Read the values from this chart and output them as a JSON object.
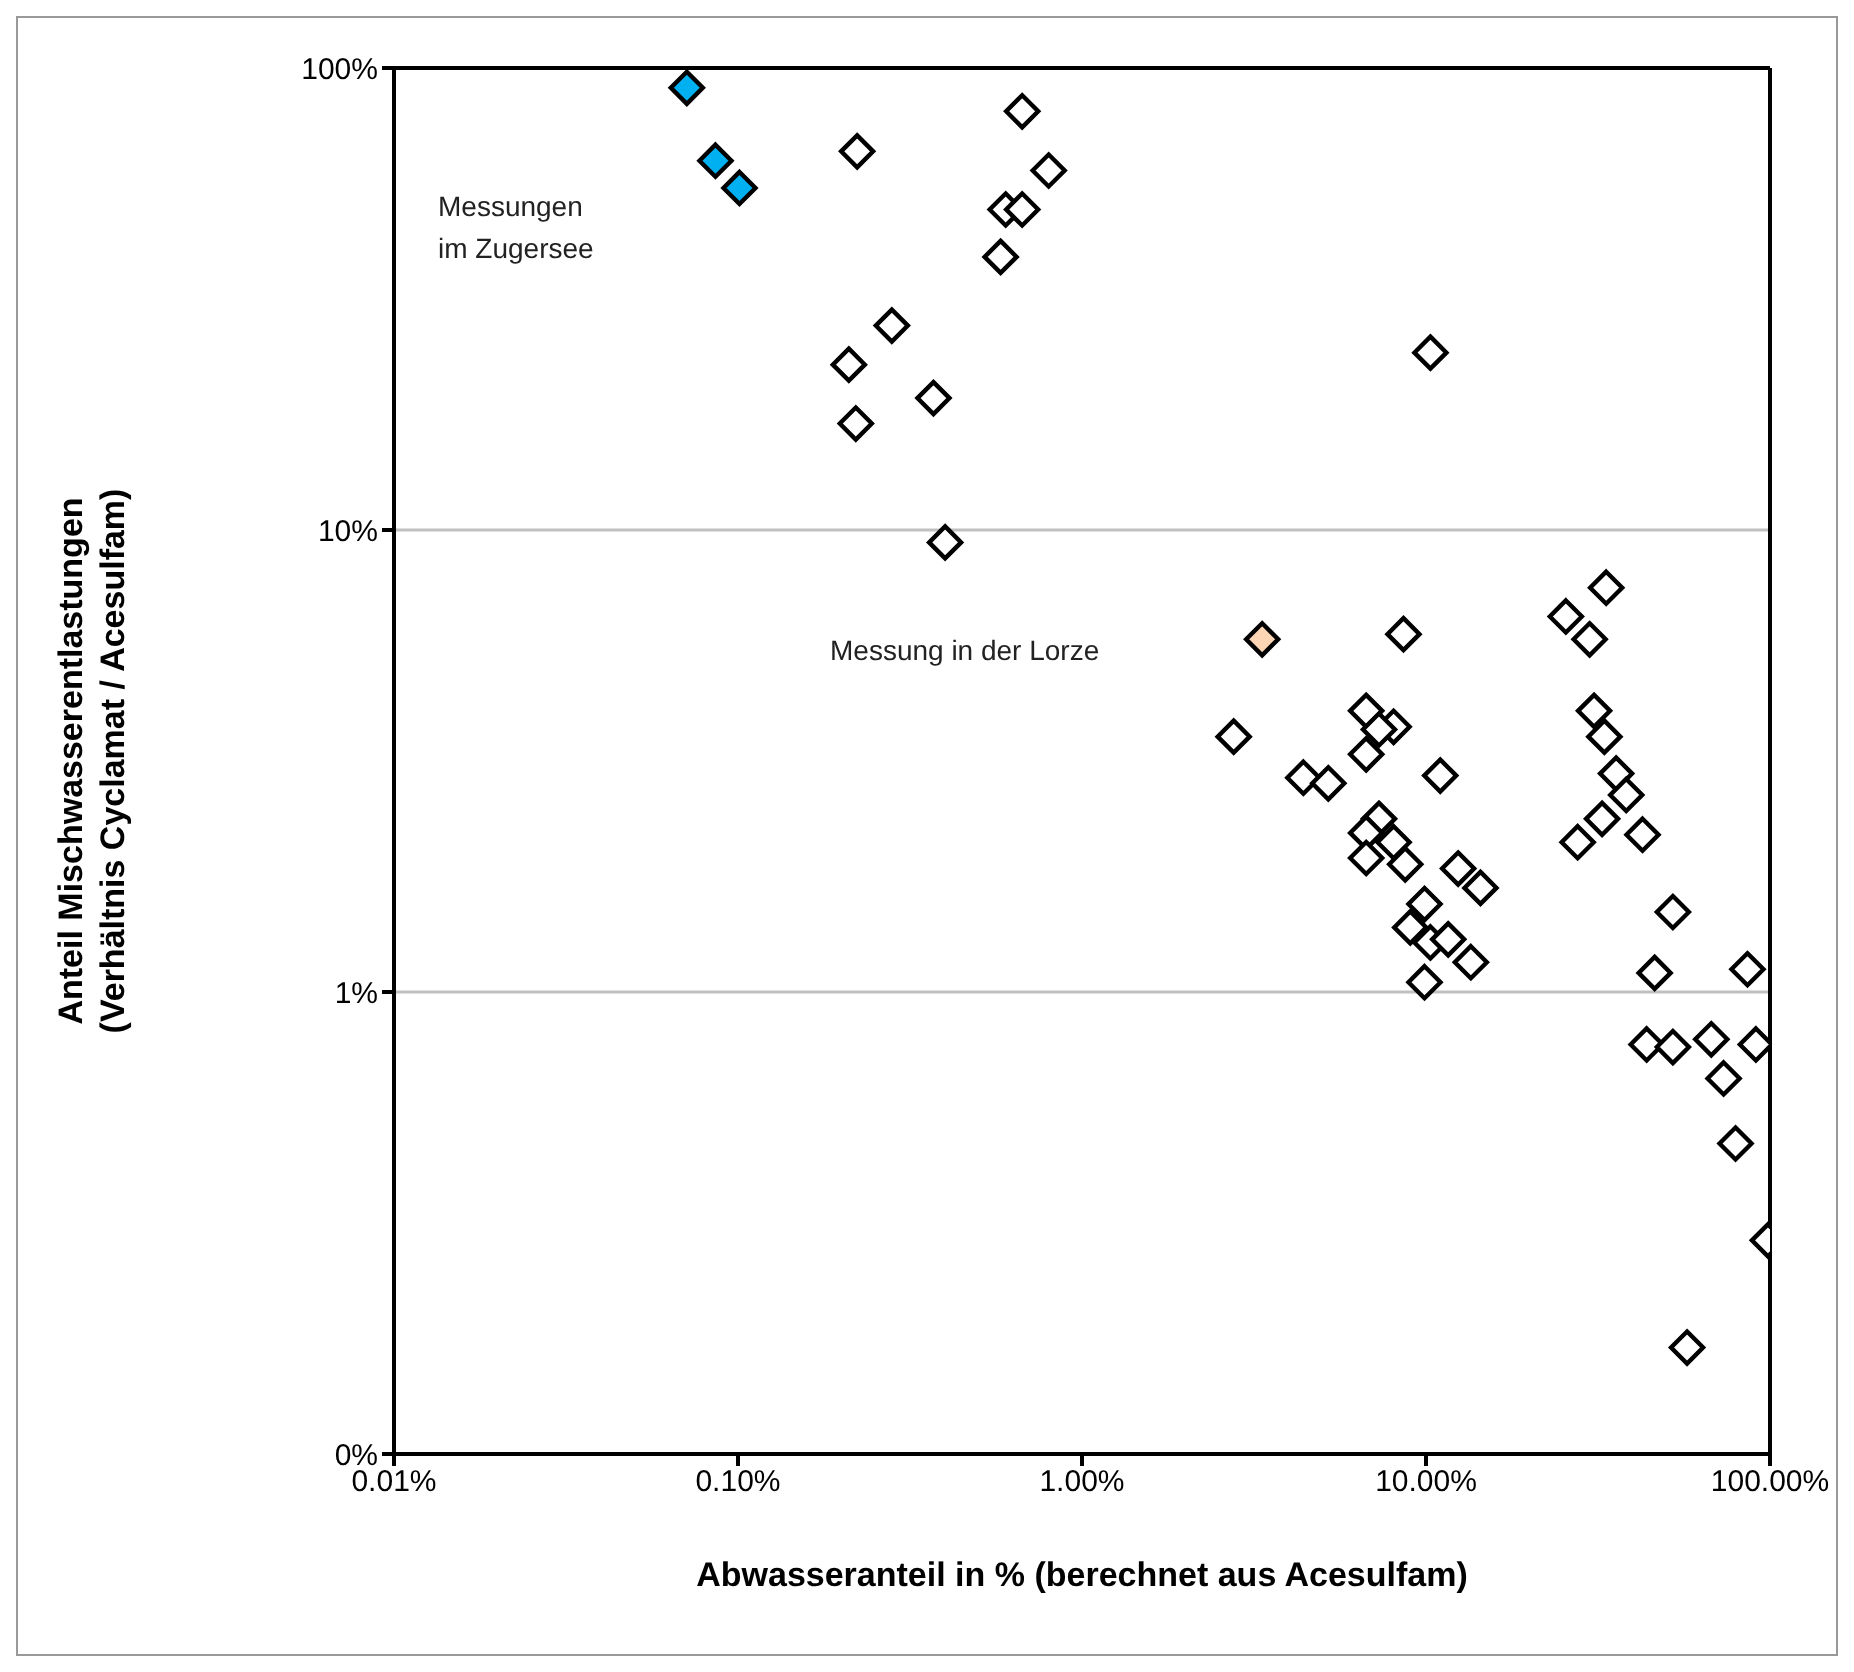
{
  "chart_data": {
    "type": "scatter",
    "xlabel": "Abwasseranteil in % (berechnet aus Acesulfam)",
    "ylabel": "Anteil Mischwasserentlastungen\n(Verhältnis Cyclamat / Acesulfam)",
    "log": "xy",
    "grid": "y",
    "legend": false,
    "marker": "diamond",
    "xlim": [
      0.01,
      100
    ],
    "xticks": [
      {
        "value": 0.01,
        "label": "0.01%"
      },
      {
        "value": 0.1,
        "label": "0.10%"
      },
      {
        "value": 1,
        "label": "1.00%"
      },
      {
        "value": 10,
        "label": "10.00%"
      },
      {
        "value": 100,
        "label": "100.00%"
      }
    ],
    "ylim": [
      0.1,
      100
    ],
    "yticks": [
      {
        "value": 0.1,
        "label": "0%"
      },
      {
        "value": 1,
        "label": "1%"
      },
      {
        "value": 10,
        "label": "10%"
      },
      {
        "value": 100,
        "label": "100%"
      }
    ],
    "annotations": [
      "Messungen\nim Zugersee",
      "Messung in der Lorze"
    ],
    "series": [
      {
        "color": "#ffffff",
        "x": [
          0.222,
          0.67,
          0.8,
          0.6,
          0.67,
          0.58,
          0.28,
          0.21,
          0.37,
          0.22,
          0.4,
          10.3,
          8.6,
          2.76,
          6.7,
          8.05,
          7.3,
          6.7,
          4.4,
          5.2,
          11.0,
          7.3,
          6.7,
          8.05,
          6.7,
          8.7,
          12.4,
          14.4,
          9.9,
          9.0,
          10.3,
          11.6,
          13.5,
          9.9,
          33.4,
          25.5,
          29.9,
          30.8,
          33,
          35.7,
          38.2,
          32.5,
          27.6,
          42.6,
          52.2,
          46.2,
          86,
          43.8,
          52.2,
          67.5,
          91,
          73.3,
          79.4,
          98.6,
          57.4
        ],
        "values": [
          66,
          80.6,
          60,
          49.4,
          49.4,
          39,
          27.7,
          22.8,
          19.3,
          17,
          9.4,
          24.2,
          5.95,
          3.57,
          4.06,
          3.75,
          3.7,
          3.27,
          2.91,
          2.83,
          2.94,
          2.37,
          2.21,
          2.11,
          1.95,
          1.89,
          1.85,
          1.68,
          1.55,
          1.38,
          1.28,
          1.3,
          1.16,
          1.05,
          7.5,
          6.5,
          5.8,
          4.06,
          3.57,
          2.97,
          2.67,
          2.37,
          2.11,
          2.19,
          1.49,
          1.1,
          1.12,
          0.77,
          0.76,
          0.79,
          0.77,
          0.65,
          0.47,
          0.29,
          0.17
        ]
      },
      {
        "color": "#00b0f0",
        "x": [
          0.071,
          0.086,
          0.101
        ],
        "values": [
          90.6,
          63,
          55
        ]
      },
      {
        "color": "#fcd5b5",
        "x": [
          3.34
        ],
        "values": [
          5.8
        ]
      }
    ]
  }
}
